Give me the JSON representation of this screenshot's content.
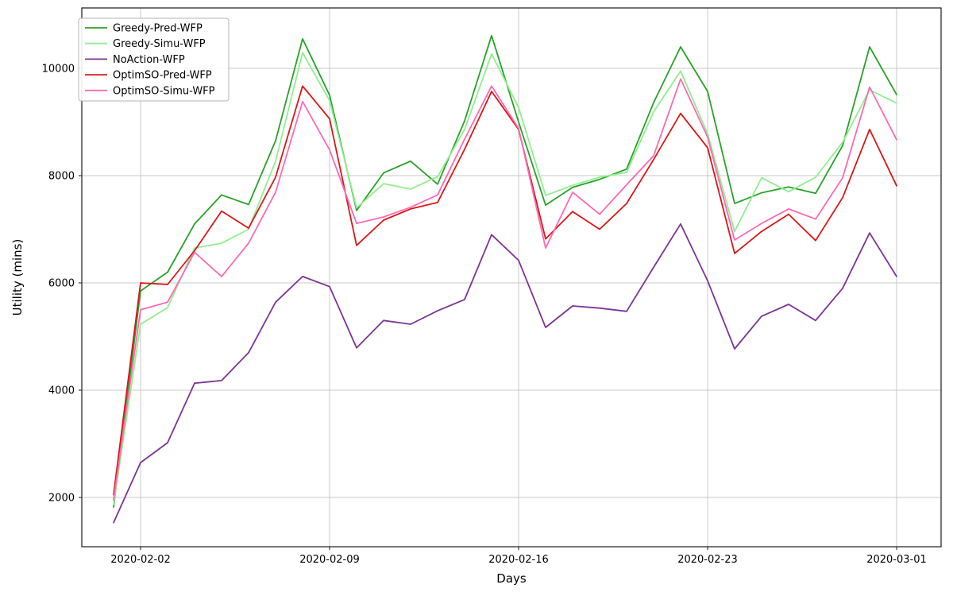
{
  "chart_data": {
    "type": "line",
    "title": "",
    "xlabel": "Days",
    "ylabel": "Utility (mins)",
    "grid": true,
    "legend_position": "upper-left",
    "x": [
      "2020-02-01",
      "2020-02-02",
      "2020-02-03",
      "2020-02-04",
      "2020-02-05",
      "2020-02-06",
      "2020-02-07",
      "2020-02-08",
      "2020-02-09",
      "2020-02-10",
      "2020-02-11",
      "2020-02-12",
      "2020-02-13",
      "2020-02-14",
      "2020-02-15",
      "2020-02-16",
      "2020-02-17",
      "2020-02-18",
      "2020-02-19",
      "2020-02-20",
      "2020-02-21",
      "2020-02-22",
      "2020-02-23",
      "2020-02-24",
      "2020-02-25",
      "2020-02-26",
      "2020-02-27",
      "2020-02-28",
      "2020-02-29",
      "2020-03-01"
    ],
    "xticks": [
      {
        "index": 1,
        "label": "2020-02-02"
      },
      {
        "index": 8,
        "label": "2020-02-09"
      },
      {
        "index": 15,
        "label": "2020-02-16"
      },
      {
        "index": 22,
        "label": "2020-02-23"
      },
      {
        "index": 29,
        "label": "2020-03-01"
      }
    ],
    "yticks": [
      2000,
      4000,
      6000,
      8000,
      10000
    ],
    "ylim": [
      1080,
      11120
    ],
    "series": [
      {
        "name": "Greedy-Pred-WFP",
        "color": "#28a228",
        "values": [
          1820,
          5850,
          6200,
          7100,
          7640,
          7460,
          8650,
          10550,
          9500,
          7350,
          8050,
          8270,
          7840,
          9020,
          10610,
          9000,
          7450,
          7780,
          7930,
          8120,
          9360,
          10400,
          9570,
          7480,
          7680,
          7790,
          7670,
          8560,
          10400,
          9510
        ]
      },
      {
        "name": "Greedy-Simu-WFP",
        "color": "#90ee90",
        "values": [
          1870,
          5230,
          5540,
          6650,
          6740,
          7000,
          8270,
          10290,
          9400,
          7400,
          7850,
          7750,
          7980,
          8860,
          10270,
          9270,
          7630,
          7820,
          7970,
          8060,
          9190,
          9950,
          8780,
          6960,
          7960,
          7700,
          7970,
          8620,
          9600,
          9350
        ]
      },
      {
        "name": "NoAction-WFP",
        "color": "#7d3494",
        "values": [
          1530,
          2650,
          3020,
          4130,
          4180,
          4700,
          5640,
          6120,
          5930,
          4790,
          5300,
          5230,
          5480,
          5690,
          6900,
          6420,
          5170,
          5570,
          5530,
          5470,
          6290,
          7100,
          6040,
          4770,
          5380,
          5600,
          5300,
          5900,
          6930,
          6120
        ]
      },
      {
        "name": "OptimSO-Pred-WFP",
        "color": "#dc1616",
        "values": [
          2050,
          6000,
          5970,
          6600,
          7340,
          7020,
          7970,
          9670,
          9060,
          6700,
          7170,
          7380,
          7500,
          8490,
          9570,
          8860,
          6820,
          7330,
          7000,
          7480,
          8300,
          9160,
          8520,
          6550,
          6960,
          7280,
          6790,
          7590,
          8860,
          7810
        ]
      },
      {
        "name": "OptimSO-Simu-WFP",
        "color": "#ff69b4",
        "values": [
          1950,
          5500,
          5640,
          6570,
          6120,
          6740,
          7690,
          9380,
          8480,
          7110,
          7230,
          7410,
          7640,
          8680,
          9670,
          8880,
          6650,
          7690,
          7280,
          7830,
          8370,
          9800,
          8720,
          6800,
          7110,
          7380,
          7190,
          7960,
          9650,
          8670
        ]
      }
    ],
    "style": {
      "grid_color": "#c9c9c9",
      "spine_color": "#1a1a1a",
      "background": "#ffffff",
      "legend_border": "#b5b5b5",
      "line_width": 1.8
    }
  }
}
